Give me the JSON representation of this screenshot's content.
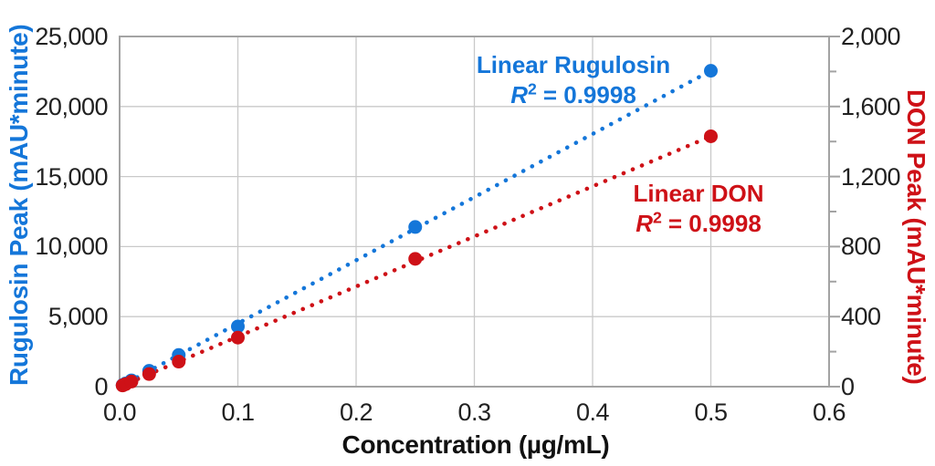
{
  "chart_data": {
    "type": "scatter",
    "title": "",
    "xlabel": "Concentration (µg/mL)",
    "x": [
      0.0025,
      0.005,
      0.01,
      0.025,
      0.05,
      0.1,
      0.25,
      0.5
    ],
    "series": [
      {
        "name": "Rugulosin Peak",
        "axis": "left",
        "color": "#1476d9",
        "values": [
          110,
          230,
          450,
          1130,
          2260,
          4300,
          11400,
          22550
        ],
        "trendline": {
          "type": "linear",
          "r_squared": 0.9998,
          "label": "Linear Rugulosin",
          "x_end": 0.5,
          "y_end": 22550
        }
      },
      {
        "name": "DON Peak",
        "axis": "right",
        "color": "#ce1117",
        "values": [
          7,
          14,
          29,
          72,
          143,
          280,
          730,
          1430
        ],
        "trendline": {
          "type": "linear",
          "r_squared": 0.9998,
          "label": "Linear DON",
          "x_end": 0.5,
          "y_end": 1430
        }
      }
    ],
    "xlim": [
      0,
      0.6
    ],
    "left_ylim": [
      0,
      25000
    ],
    "right_ylim": [
      0,
      2000
    ],
    "grid": true,
    "legend_position": "none"
  },
  "axes": {
    "x": {
      "title": "Concentration (µg/mL)",
      "ticks": [
        "0.0",
        "0.1",
        "0.2",
        "0.3",
        "0.4",
        "0.5",
        "0.6"
      ],
      "tick_values": [
        0,
        0.1,
        0.2,
        0.3,
        0.4,
        0.5,
        0.6
      ]
    },
    "left": {
      "title": "Rugulosin Peak (mAU*minute)",
      "color": "#1476d9",
      "ticks": [
        "0",
        "5,000",
        "10,000",
        "15,000",
        "20,000",
        "25,000"
      ],
      "tick_values": [
        0,
        5000,
        10000,
        15000,
        20000,
        25000
      ]
    },
    "right": {
      "title": "DON Peak (mAU*minute)",
      "color": "#ce1117",
      "ticks": [
        "0",
        "400",
        "800",
        "1,200",
        "1,600",
        "2,000"
      ],
      "tick_values": [
        0,
        400,
        800,
        1200,
        1600,
        2000
      ],
      "minor_tick_values": [
        200,
        600,
        1000,
        1400,
        1800
      ]
    }
  },
  "annotations": {
    "rugulosin": {
      "label": "Linear Rugulosin",
      "r2": {
        "r": "R",
        "sup": "2",
        "rest": "= 0.9998"
      },
      "color": "#1476d9"
    },
    "don": {
      "label": "Linear DON",
      "r2": {
        "r": "R",
        "sup": "2",
        "rest": "= 0.9998"
      },
      "color": "#ce1117"
    }
  },
  "style": {
    "grid_color": "#c9c9c9",
    "border_color": "#a3a3a3",
    "tick_label_color": "#212121"
  }
}
